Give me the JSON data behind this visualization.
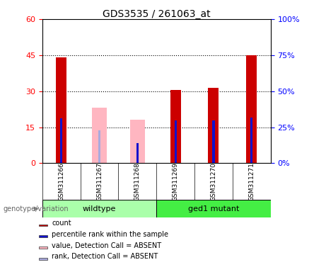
{
  "title": "GDS3535 / 261063_at",
  "samples": [
    "GSM311266",
    "GSM311267",
    "GSM311268",
    "GSM311269",
    "GSM311270",
    "GSM311271"
  ],
  "count_values": [
    44,
    0,
    0,
    30.5,
    31.5,
    45
  ],
  "percentile_values": [
    31,
    0,
    14,
    29.5,
    29.5,
    31.5
  ],
  "absent_value_values": [
    0,
    23,
    18,
    0,
    0,
    0
  ],
  "absent_rank_values": [
    0,
    23,
    0,
    0,
    0,
    0
  ],
  "absent_flags": [
    false,
    true,
    true,
    false,
    false,
    false
  ],
  "absent_has_rank": [
    false,
    true,
    false,
    false,
    false,
    false
  ],
  "absent_has_blue": [
    false,
    false,
    true,
    false,
    false,
    false
  ],
  "ylim_left": [
    0,
    60
  ],
  "ylim_right": [
    0,
    100
  ],
  "yticks_left": [
    0,
    15,
    30,
    45,
    60
  ],
  "yticks_right": [
    0,
    25,
    50,
    75,
    100
  ],
  "count_color": "#CC0000",
  "percentile_color": "#1111CC",
  "absent_value_color": "#FFB6C1",
  "absent_rank_color": "#AAAADD",
  "wildtype_color": "#AAFFAA",
  "ged1_mutant_color": "#44EE44",
  "label_bg_color": "#D3D3D3",
  "plot_bg": "white"
}
